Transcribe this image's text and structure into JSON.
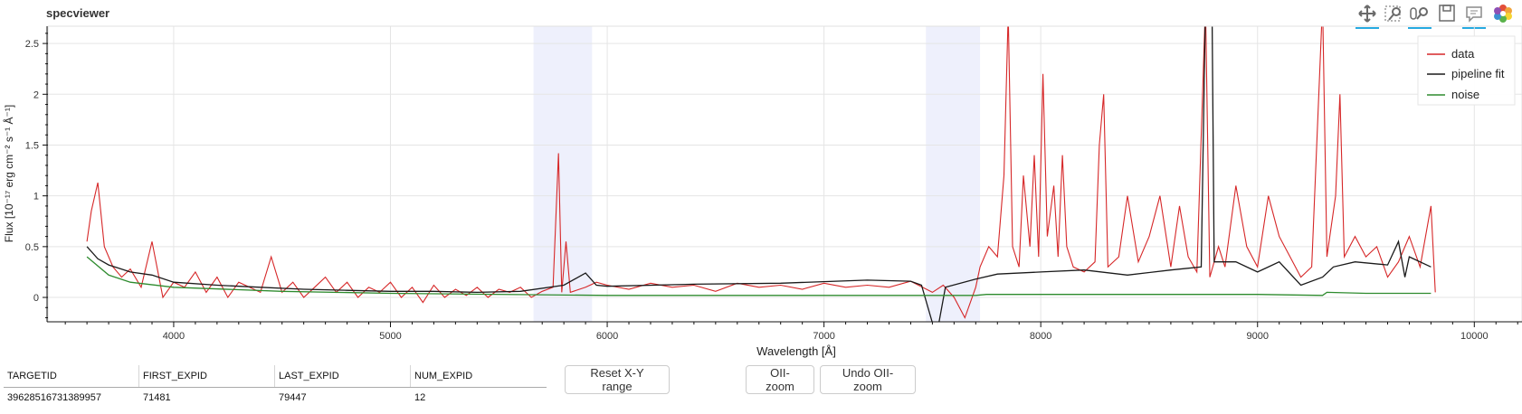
{
  "app": {
    "title": "specviewer"
  },
  "toolbar": {
    "tools": [
      "pan-icon",
      "box-zoom-icon",
      "wheel-zoom-icon",
      "save-icon",
      "hover-icon",
      "bokeh-logo-icon"
    ]
  },
  "colors": {
    "data": "#d62728",
    "fit": "#1a1a1a",
    "noise": "#2e8b2e",
    "band": "#eef0fc"
  },
  "chart_data": {
    "type": "line",
    "xlabel": "Wavelength [Å]",
    "ylabel": "Flux [10⁻¹⁷ erg cm⁻² s⁻¹ Å⁻¹]",
    "xlim": [
      3420,
      10220
    ],
    "ylim": [
      -0.24,
      2.67
    ],
    "xticks": [
      4000,
      5000,
      6000,
      7000,
      8000,
      9000,
      10000
    ],
    "xtick_labels": [
      "4000",
      "5000",
      "6000",
      "7000",
      "8000",
      "9000",
      "10000"
    ],
    "yticks": [
      0,
      0.5,
      1,
      1.5,
      2,
      2.5
    ],
    "ytick_labels": [
      "0",
      "0.5",
      "1",
      "1.5",
      "2",
      "2.5"
    ],
    "grid": true,
    "legend_position": "top-right",
    "shaded_bands": [
      [
        5660,
        5930
      ],
      [
        7470,
        7720
      ]
    ],
    "series": [
      {
        "name": "data",
        "points": [
          [
            3600,
            0.55
          ],
          [
            3620,
            0.85
          ],
          [
            3650,
            1.13
          ],
          [
            3680,
            0.5
          ],
          [
            3720,
            0.3
          ],
          [
            3760,
            0.2
          ],
          [
            3800,
            0.28
          ],
          [
            3850,
            0.1
          ],
          [
            3900,
            0.55
          ],
          [
            3950,
            0.0
          ],
          [
            4000,
            0.15
          ],
          [
            4050,
            0.1
          ],
          [
            4100,
            0.25
          ],
          [
            4150,
            0.05
          ],
          [
            4200,
            0.2
          ],
          [
            4250,
            0.0
          ],
          [
            4300,
            0.15
          ],
          [
            4350,
            0.1
          ],
          [
            4400,
            0.05
          ],
          [
            4450,
            0.4
          ],
          [
            4500,
            0.05
          ],
          [
            4550,
            0.15
          ],
          [
            4600,
            0.0
          ],
          [
            4650,
            0.1
          ],
          [
            4700,
            0.2
          ],
          [
            4750,
            0.05
          ],
          [
            4800,
            0.15
          ],
          [
            4850,
            0.0
          ],
          [
            4900,
            0.1
          ],
          [
            4950,
            0.05
          ],
          [
            5000,
            0.15
          ],
          [
            5050,
            0.0
          ],
          [
            5100,
            0.1
          ],
          [
            5150,
            -0.05
          ],
          [
            5200,
            0.12
          ],
          [
            5250,
            0.0
          ],
          [
            5300,
            0.08
          ],
          [
            5350,
            0.02
          ],
          [
            5400,
            0.1
          ],
          [
            5450,
            0.0
          ],
          [
            5500,
            0.08
          ],
          [
            5550,
            0.05
          ],
          [
            5600,
            0.1
          ],
          [
            5650,
            0.0
          ],
          [
            5700,
            0.06
          ],
          [
            5750,
            0.1
          ],
          [
            5775,
            1.42
          ],
          [
            5790,
            0.05
          ],
          [
            5810,
            0.55
          ],
          [
            5830,
            0.05
          ],
          [
            5900,
            0.1
          ],
          [
            5950,
            0.15
          ],
          [
            6000,
            0.12
          ],
          [
            6100,
            0.08
          ],
          [
            6200,
            0.14
          ],
          [
            6300,
            0.1
          ],
          [
            6400,
            0.12
          ],
          [
            6500,
            0.06
          ],
          [
            6600,
            0.14
          ],
          [
            6700,
            0.1
          ],
          [
            6800,
            0.12
          ],
          [
            6900,
            0.08
          ],
          [
            7000,
            0.14
          ],
          [
            7100,
            0.1
          ],
          [
            7200,
            0.12
          ],
          [
            7300,
            0.1
          ],
          [
            7400,
            0.16
          ],
          [
            7500,
            0.05
          ],
          [
            7550,
            0.12
          ],
          [
            7600,
            0.0
          ],
          [
            7650,
            -0.2
          ],
          [
            7700,
            0.1
          ],
          [
            7720,
            0.3
          ],
          [
            7760,
            0.5
          ],
          [
            7800,
            0.4
          ],
          [
            7830,
            1.2
          ],
          [
            7850,
            2.8
          ],
          [
            7870,
            0.5
          ],
          [
            7900,
            0.3
          ],
          [
            7920,
            1.2
          ],
          [
            7950,
            0.5
          ],
          [
            7970,
            1.4
          ],
          [
            7990,
            0.4
          ],
          [
            8010,
            2.2
          ],
          [
            8030,
            0.6
          ],
          [
            8060,
            1.1
          ],
          [
            8080,
            0.4
          ],
          [
            8100,
            1.4
          ],
          [
            8120,
            0.5
          ],
          [
            8150,
            0.3
          ],
          [
            8200,
            0.25
          ],
          [
            8250,
            0.35
          ],
          [
            8270,
            1.5
          ],
          [
            8290,
            2.0
          ],
          [
            8310,
            0.3
          ],
          [
            8360,
            0.4
          ],
          [
            8400,
            1.0
          ],
          [
            8450,
            0.35
          ],
          [
            8500,
            0.6
          ],
          [
            8550,
            1.0
          ],
          [
            8600,
            0.3
          ],
          [
            8640,
            0.9
          ],
          [
            8680,
            0.4
          ],
          [
            8720,
            0.25
          ],
          [
            8760,
            2.9
          ],
          [
            8780,
            0.2
          ],
          [
            8820,
            0.5
          ],
          [
            8850,
            0.3
          ],
          [
            8900,
            1.1
          ],
          [
            8950,
            0.5
          ],
          [
            9000,
            0.3
          ],
          [
            9050,
            1.0
          ],
          [
            9100,
            0.6
          ],
          [
            9150,
            0.4
          ],
          [
            9200,
            0.2
          ],
          [
            9250,
            0.3
          ],
          [
            9300,
            2.9
          ],
          [
            9320,
            0.4
          ],
          [
            9360,
            1.0
          ],
          [
            9380,
            2.0
          ],
          [
            9400,
            0.4
          ],
          [
            9450,
            0.6
          ],
          [
            9500,
            0.4
          ],
          [
            9550,
            0.5
          ],
          [
            9600,
            0.2
          ],
          [
            9650,
            0.35
          ],
          [
            9700,
            0.6
          ],
          [
            9750,
            0.3
          ],
          [
            9800,
            0.9
          ],
          [
            9820,
            0.05
          ]
        ]
      },
      {
        "name": "pipeline fit",
        "points": [
          [
            3600,
            0.5
          ],
          [
            3650,
            0.38
          ],
          [
            3700,
            0.32
          ],
          [
            3800,
            0.25
          ],
          [
            3900,
            0.22
          ],
          [
            4000,
            0.15
          ],
          [
            4200,
            0.12
          ],
          [
            4400,
            0.1
          ],
          [
            4600,
            0.08
          ],
          [
            4800,
            0.07
          ],
          [
            5000,
            0.06
          ],
          [
            5200,
            0.06
          ],
          [
            5400,
            0.05
          ],
          [
            5600,
            0.06
          ],
          [
            5800,
            0.12
          ],
          [
            5900,
            0.24
          ],
          [
            5950,
            0.12
          ],
          [
            6000,
            0.11
          ],
          [
            6400,
            0.13
          ],
          [
            6800,
            0.14
          ],
          [
            7200,
            0.17
          ],
          [
            7400,
            0.16
          ],
          [
            7450,
            0.12
          ],
          [
            7500,
            -0.25
          ],
          [
            7530,
            -0.25
          ],
          [
            7560,
            0.1
          ],
          [
            7700,
            0.18
          ],
          [
            7800,
            0.23
          ],
          [
            8000,
            0.25
          ],
          [
            8200,
            0.27
          ],
          [
            8400,
            0.22
          ],
          [
            8600,
            0.27
          ],
          [
            8740,
            0.3
          ],
          [
            8760,
            2.9
          ],
          [
            8790,
            2.9
          ],
          [
            8800,
            0.35
          ],
          [
            8900,
            0.35
          ],
          [
            9000,
            0.25
          ],
          [
            9100,
            0.35
          ],
          [
            9200,
            0.12
          ],
          [
            9300,
            0.2
          ],
          [
            9350,
            0.3
          ],
          [
            9450,
            0.35
          ],
          [
            9600,
            0.32
          ],
          [
            9650,
            0.55
          ],
          [
            9680,
            0.2
          ],
          [
            9700,
            0.4
          ],
          [
            9800,
            0.3
          ]
        ]
      },
      {
        "name": "noise",
        "points": [
          [
            3600,
            0.4
          ],
          [
            3700,
            0.22
          ],
          [
            3800,
            0.15
          ],
          [
            4000,
            0.1
          ],
          [
            4500,
            0.06
          ],
          [
            5000,
            0.04
          ],
          [
            6000,
            0.02
          ],
          [
            7000,
            0.02
          ],
          [
            7700,
            0.02
          ],
          [
            7750,
            0.03
          ],
          [
            8500,
            0.03
          ],
          [
            9000,
            0.03
          ],
          [
            9300,
            0.02
          ],
          [
            9320,
            0.05
          ],
          [
            9500,
            0.04
          ],
          [
            9800,
            0.04
          ]
        ]
      }
    ]
  },
  "legend": {
    "items": [
      "data",
      "pipeline fit",
      "noise"
    ]
  },
  "table": {
    "headers": [
      "TARGETID",
      "FIRST_EXPID",
      "LAST_EXPID",
      "NUM_EXPID"
    ],
    "rows": [
      [
        "39628516731389957",
        "71481",
        "79447",
        "12"
      ]
    ]
  },
  "buttons": {
    "reset": "Reset X-Y range",
    "oii_zoom": "OII-zoom",
    "undo_oii_zoom": "Undo OII-zoom"
  }
}
